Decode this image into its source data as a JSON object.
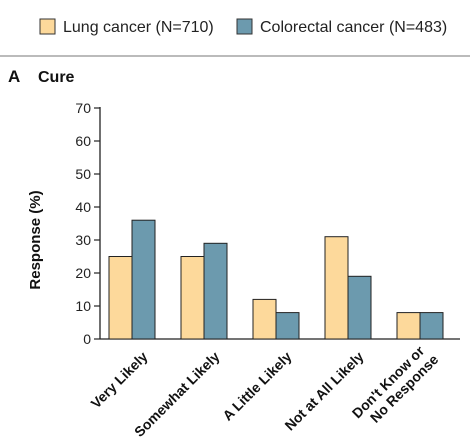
{
  "legend": [
    {
      "label": "Lung cancer (N=710)",
      "color": "#fdd99b"
    },
    {
      "label": "Colorectal cancer (N=483)",
      "color": "#6c9aae"
    }
  ],
  "panel": {
    "letter": "A",
    "title": "Cure"
  },
  "chart_data": {
    "type": "bar",
    "categories": [
      "Very Likely",
      "Somewhat Likely",
      "A Little Likely",
      "Not at All Likely",
      [
        "Don't Know or",
        "No Response"
      ]
    ],
    "series": [
      {
        "name": "Lung cancer (N=710)",
        "values": [
          25,
          25,
          12,
          31,
          8
        ],
        "color": "#fdd99b"
      },
      {
        "name": "Colorectal cancer (N=483)",
        "values": [
          36,
          29,
          8,
          19,
          8
        ],
        "color": "#6c9aae"
      }
    ],
    "ylabel": "Response (%)",
    "ylim": [
      0,
      70
    ],
    "yticks": [
      0,
      10,
      20,
      30,
      40,
      50,
      60,
      70
    ],
    "grid": false,
    "legend_position": "top"
  }
}
